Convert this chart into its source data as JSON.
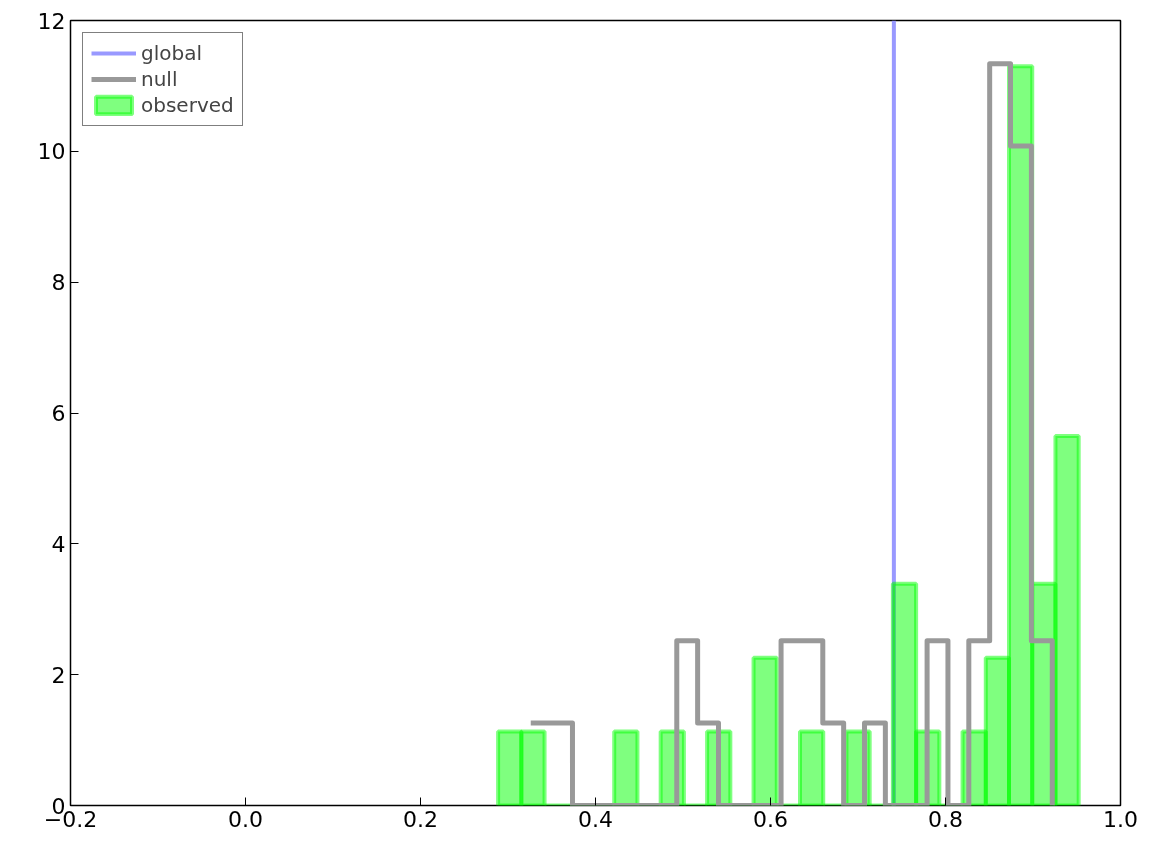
{
  "chart_data": {
    "type": "histogram",
    "bins": [
      0.2887,
      0.31524,
      0.34178,
      0.36832,
      0.39486,
      0.4214,
      0.44794,
      0.47448,
      0.50102,
      0.52756,
      0.5541,
      0.58064,
      0.60718,
      0.63372,
      0.66026,
      0.6868,
      0.71334,
      0.73988,
      0.76642,
      0.79296,
      0.8195,
      0.84604,
      0.87258,
      0.89912,
      0.92566,
      0.9522
    ],
    "series": [
      {
        "name": "global",
        "type": "line",
        "color": "#9999ff",
        "x": [
          0.741,
          0.741
        ],
        "values": [
          0,
          12
        ]
      },
      {
        "name": "observed",
        "color": "#00ff00",
        "values": [
          1.13,
          1.13,
          0,
          0,
          0,
          1.13,
          0,
          1.13,
          0,
          1.13,
          0,
          2.26,
          0,
          1.13,
          0,
          1.13,
          0,
          3.39,
          1.13,
          0,
          1.13,
          2.26,
          11.3,
          3.39,
          5.65
        ]
      },
      {
        "name": "null",
        "type": "step",
        "color": "#999999",
        "x": [
          0.326,
          0.34984,
          0.37368,
          0.39752,
          0.42136,
          0.4452,
          0.46904,
          0.49288,
          0.51672,
          0.54056,
          0.5644,
          0.58824,
          0.61208,
          0.63592,
          0.65976,
          0.6836,
          0.70744,
          0.73128,
          0.75512,
          0.77896,
          0.8028,
          0.82664,
          0.85048,
          0.87432,
          0.89816,
          0.922
        ],
        "values": [
          1.26,
          1.26,
          0,
          0,
          0,
          0,
          0,
          2.52,
          1.26,
          0,
          0,
          0,
          2.52,
          2.52,
          1.26,
          0,
          1.26,
          0,
          0,
          2.52,
          0,
          2.52,
          11.34,
          10.08,
          2.52,
          0
        ]
      }
    ],
    "xlim": [
      -0.2,
      1.0
    ],
    "xticks": [
      {
        "value": -0.2,
        "label": "−0.2"
      },
      {
        "value": 0,
        "label": "0.0"
      },
      {
        "value": 0.2,
        "label": "0.2"
      },
      {
        "value": 0.4,
        "label": "0.4"
      },
      {
        "value": 0.6,
        "label": "0.6"
      },
      {
        "value": 0.8,
        "label": "0.8"
      },
      {
        "value": 1.0,
        "label": "1.0"
      }
    ],
    "ylim": [
      0,
      12
    ],
    "yticks": [
      0,
      2,
      4,
      6,
      8,
      10,
      12
    ],
    "grid": false,
    "legend": "top left"
  }
}
